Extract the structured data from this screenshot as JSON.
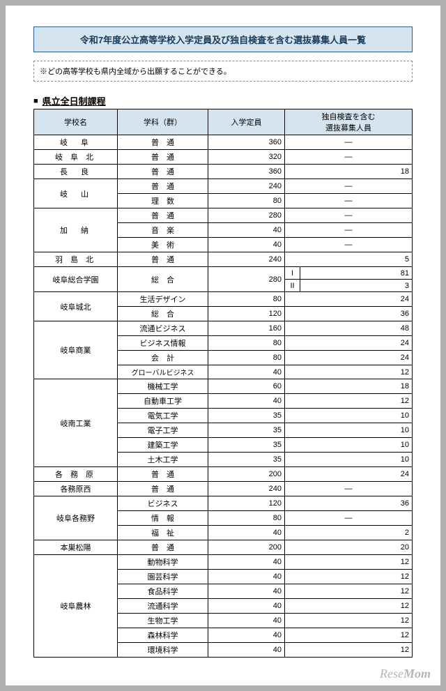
{
  "title": "令和7年度公立高等学校入学定員及び独自検査を含む選抜募集人員一覧",
  "note": "※どの高等学校も県内全域から出願することができる。",
  "section_marker": "■",
  "section_title": "県立全日制課程",
  "headers": {
    "school": "学校名",
    "dept": "学科（群）",
    "capacity": "入学定員",
    "selection": "独自検査を含む\n選抜募集人員"
  },
  "col_widths": {
    "school": "120px",
    "dept": "130px",
    "cap": "110px"
  },
  "watermark": {
    "a": "Rese",
    "b": "Mom"
  },
  "rows": [
    {
      "school": "岐　阜",
      "rowspan": 1,
      "dept": "普　通",
      "cap": "360",
      "sel": "―"
    },
    {
      "school": "岐 阜 北",
      "rowspan": 1,
      "dept": "普　通",
      "cap": "320",
      "sel": "―"
    },
    {
      "school": "長　良",
      "rowspan": 1,
      "dept": "普　通",
      "cap": "360",
      "sel": "18"
    },
    {
      "school": "岐　山",
      "rowspan": 2,
      "dept": "普　通",
      "cap": "240",
      "sel": "―"
    },
    {
      "dept": "理　数",
      "cap": "80",
      "sel": "―"
    },
    {
      "school": "加　納",
      "rowspan": 3,
      "dept": "普　通",
      "cap": "280",
      "sel": "―"
    },
    {
      "dept": "音　楽",
      "cap": "40",
      "sel": "―"
    },
    {
      "dept": "美　術",
      "cap": "40",
      "sel": "―"
    },
    {
      "school": "羽 島 北",
      "rowspan": 1,
      "dept": "普　通",
      "cap": "240",
      "sel": "5"
    },
    {
      "school": "岐阜総合学園",
      "rowspan": 2,
      "dept": "総　合",
      "dept_rowspan": 2,
      "cap": "280",
      "cap_rowspan": 2,
      "split": [
        {
          "k": "I",
          "v": "81"
        },
        {
          "k": "II",
          "v": "3"
        }
      ]
    },
    {
      "split_row": true
    },
    {
      "school": "岐阜城北",
      "rowspan": 2,
      "dept": "生活デザイン",
      "cap": "80",
      "sel": "24"
    },
    {
      "dept": "総　合",
      "cap": "120",
      "sel": "36"
    },
    {
      "school": "岐阜商業",
      "rowspan": 4,
      "dept": "流通ビジネス",
      "cap": "160",
      "sel": "48"
    },
    {
      "dept": "ビジネス情報",
      "cap": "80",
      "sel": "24"
    },
    {
      "dept": "会　計",
      "cap": "80",
      "sel": "24"
    },
    {
      "dept": "グローバルビジネス",
      "cap": "40",
      "sel": "12"
    },
    {
      "school": "岐南工業",
      "rowspan": 6,
      "dept": "機械工学",
      "cap": "60",
      "sel": "18"
    },
    {
      "dept": "自動車工学",
      "cap": "40",
      "sel": "12"
    },
    {
      "dept": "電気工学",
      "cap": "35",
      "sel": "10"
    },
    {
      "dept": "電子工学",
      "cap": "35",
      "sel": "10"
    },
    {
      "dept": "建築工学",
      "cap": "35",
      "sel": "10"
    },
    {
      "dept": "土木工学",
      "cap": "35",
      "sel": "10"
    },
    {
      "school": "各 務 原",
      "rowspan": 1,
      "dept": "普　通",
      "cap": "200",
      "sel": "24"
    },
    {
      "school": "各務原西",
      "rowspan": 1,
      "dept": "普　通",
      "cap": "240",
      "sel": "―"
    },
    {
      "school": "岐阜各務野",
      "rowspan": 3,
      "dept": "ビジネス",
      "cap": "120",
      "sel": "36"
    },
    {
      "dept": "情　報",
      "cap": "80",
      "sel": "―"
    },
    {
      "dept": "福　祉",
      "cap": "40",
      "sel": "2"
    },
    {
      "school": "本巣松陽",
      "rowspan": 1,
      "dept": "普　通",
      "cap": "200",
      "sel": "20"
    },
    {
      "school": "岐阜農林",
      "rowspan": 7,
      "dept": "動物科学",
      "cap": "40",
      "sel": "12"
    },
    {
      "dept": "園芸科学",
      "cap": "40",
      "sel": "12"
    },
    {
      "dept": "食品科学",
      "cap": "40",
      "sel": "12"
    },
    {
      "dept": "流通科学",
      "cap": "40",
      "sel": "12"
    },
    {
      "dept": "生物工学",
      "cap": "40",
      "sel": "12"
    },
    {
      "dept": "森林科学",
      "cap": "40",
      "sel": "12"
    },
    {
      "dept": "環境科学",
      "cap": "40",
      "sel": "12"
    }
  ]
}
